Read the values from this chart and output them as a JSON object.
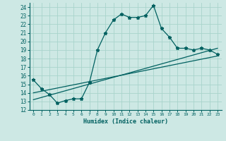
{
  "xlabel": "Humidex (Indice chaleur)",
  "xlim": [
    -0.5,
    23.5
  ],
  "ylim": [
    12,
    24.5
  ],
  "xticks": [
    0,
    1,
    2,
    3,
    4,
    5,
    6,
    7,
    8,
    9,
    10,
    11,
    12,
    13,
    14,
    15,
    16,
    17,
    18,
    19,
    20,
    21,
    22,
    23
  ],
  "yticks": [
    12,
    13,
    14,
    15,
    16,
    17,
    18,
    19,
    20,
    21,
    22,
    23,
    24
  ],
  "bg_color": "#cde8e4",
  "grid_color": "#a8d4cc",
  "line_color": "#006060",
  "main_line": {
    "x": [
      0,
      1,
      2,
      3,
      4,
      5,
      6,
      7,
      8,
      9,
      10,
      11,
      12,
      13,
      14,
      15,
      16,
      17,
      18,
      19,
      20,
      21,
      22,
      23
    ],
    "y": [
      15.5,
      14.5,
      13.8,
      12.8,
      13.1,
      13.3,
      13.3,
      15.2,
      19.0,
      21.0,
      22.5,
      23.2,
      22.8,
      22.8,
      23.0,
      24.2,
      21.5,
      20.5,
      19.2,
      19.2,
      19.0,
      19.2,
      19.0,
      18.5
    ]
  },
  "line2": {
    "x": [
      0,
      23
    ],
    "y": [
      14.0,
      18.3
    ]
  },
  "line3": {
    "x": [
      0,
      23
    ],
    "y": [
      13.2,
      19.2
    ]
  }
}
